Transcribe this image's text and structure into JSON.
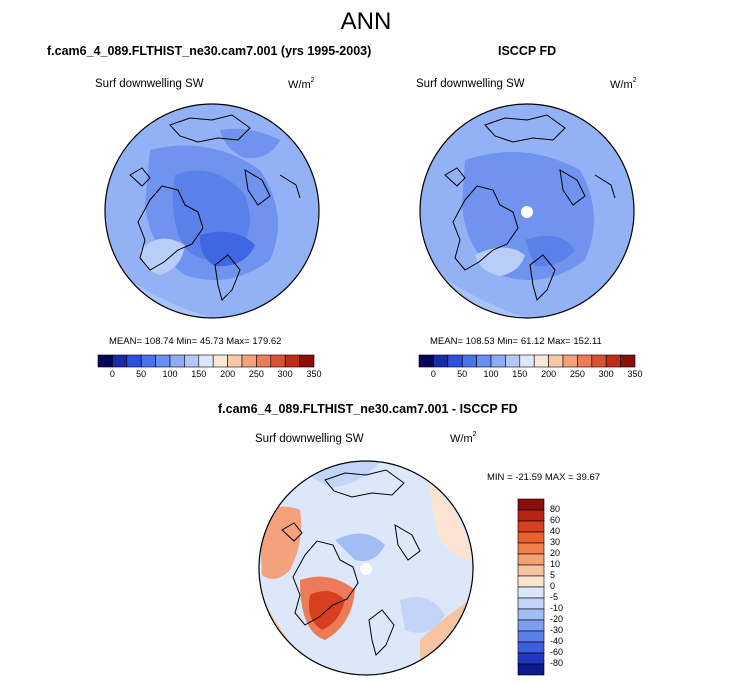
{
  "page_title": "ANN",
  "panels": {
    "model": {
      "title": "f.cam6_4_089.FLTHIST_ne30.cam7.001 (yrs 1995-2003)",
      "variable": "Surf downwelling SW",
      "units": "W/m",
      "units_exp": "2",
      "stats": "MEAN= 108.74  Min=  45.73  Max= 179.62"
    },
    "obs": {
      "title": "ISCCP FD",
      "variable": "Surf downwelling SW",
      "units": "W/m",
      "units_exp": "2",
      "stats": "MEAN= 108.53  Min=  61.12  Max= 152.11"
    },
    "diff": {
      "title": "f.cam6_4_089.FLTHIST_ne30.cam7.001 - ISCCP FD",
      "variable": "Surf downwelling SW",
      "units": "W/m",
      "units_exp": "2",
      "stats": "MIN = -21.59 MAX =  39.67"
    }
  },
  "chart_data": [
    {
      "type": "heatmap",
      "projection": "north-polar-stereographic",
      "title": "f.cam6_4_089.FLTHIST_ne30.cam7.001 (yrs 1995-2003)",
      "variable": "Surf downwelling SW",
      "units": "W/m2",
      "mean": 108.74,
      "min": 45.73,
      "max": 179.62,
      "colorbar": {
        "orientation": "horizontal",
        "tick_labels": [
          "0",
          "50",
          "100",
          "150",
          "200",
          "250",
          "300",
          "350"
        ],
        "colors": [
          "#08065a",
          "#1a2aa8",
          "#2f4fe0",
          "#4a72ee",
          "#6b8ff2",
          "#8eabf5",
          "#b3c8f8",
          "#dfe8fa",
          "#fbe7d8",
          "#f8c8a8",
          "#f3a27d",
          "#ec7c59",
          "#dc5136",
          "#bf2c1a",
          "#8a0f0a"
        ]
      }
    },
    {
      "type": "heatmap",
      "projection": "north-polar-stereographic",
      "title": "ISCCP FD",
      "variable": "Surf downwelling SW",
      "units": "W/m2",
      "mean": 108.53,
      "min": 61.12,
      "max": 152.11,
      "colorbar": {
        "orientation": "horizontal",
        "tick_labels": [
          "0",
          "50",
          "100",
          "150",
          "200",
          "250",
          "300",
          "350"
        ],
        "colors": [
          "#08065a",
          "#1a2aa8",
          "#2f4fe0",
          "#4a72ee",
          "#6b8ff2",
          "#8eabf5",
          "#b3c8f8",
          "#dfe8fa",
          "#fbe7d8",
          "#f8c8a8",
          "#f3a27d",
          "#ec7c59",
          "#dc5136",
          "#bf2c1a",
          "#8a0f0a"
        ]
      }
    },
    {
      "type": "heatmap",
      "projection": "north-polar-stereographic",
      "title": "f.cam6_4_089.FLTHIST_ne30.cam7.001 - ISCCP FD",
      "variable": "Surf downwelling SW",
      "units": "W/m2",
      "min": -21.59,
      "max": 39.67,
      "colorbar": {
        "orientation": "vertical",
        "tick_labels": [
          "80",
          "60",
          "40",
          "30",
          "20",
          "10",
          "5",
          "0",
          "-5",
          "-10",
          "-20",
          "-30",
          "-40",
          "-60",
          "-80"
        ],
        "colors": [
          "#8a0f0a",
          "#b82412",
          "#d7401e",
          "#e9612f",
          "#f0804a",
          "#f4a071",
          "#f7c4a1",
          "#fbe4d2",
          "#dce7fa",
          "#c2d4f8",
          "#a2bcf4",
          "#7d9ef0",
          "#5a7fe9",
          "#3c5de0",
          "#2038c0",
          "#0c1b8c"
        ]
      }
    }
  ]
}
